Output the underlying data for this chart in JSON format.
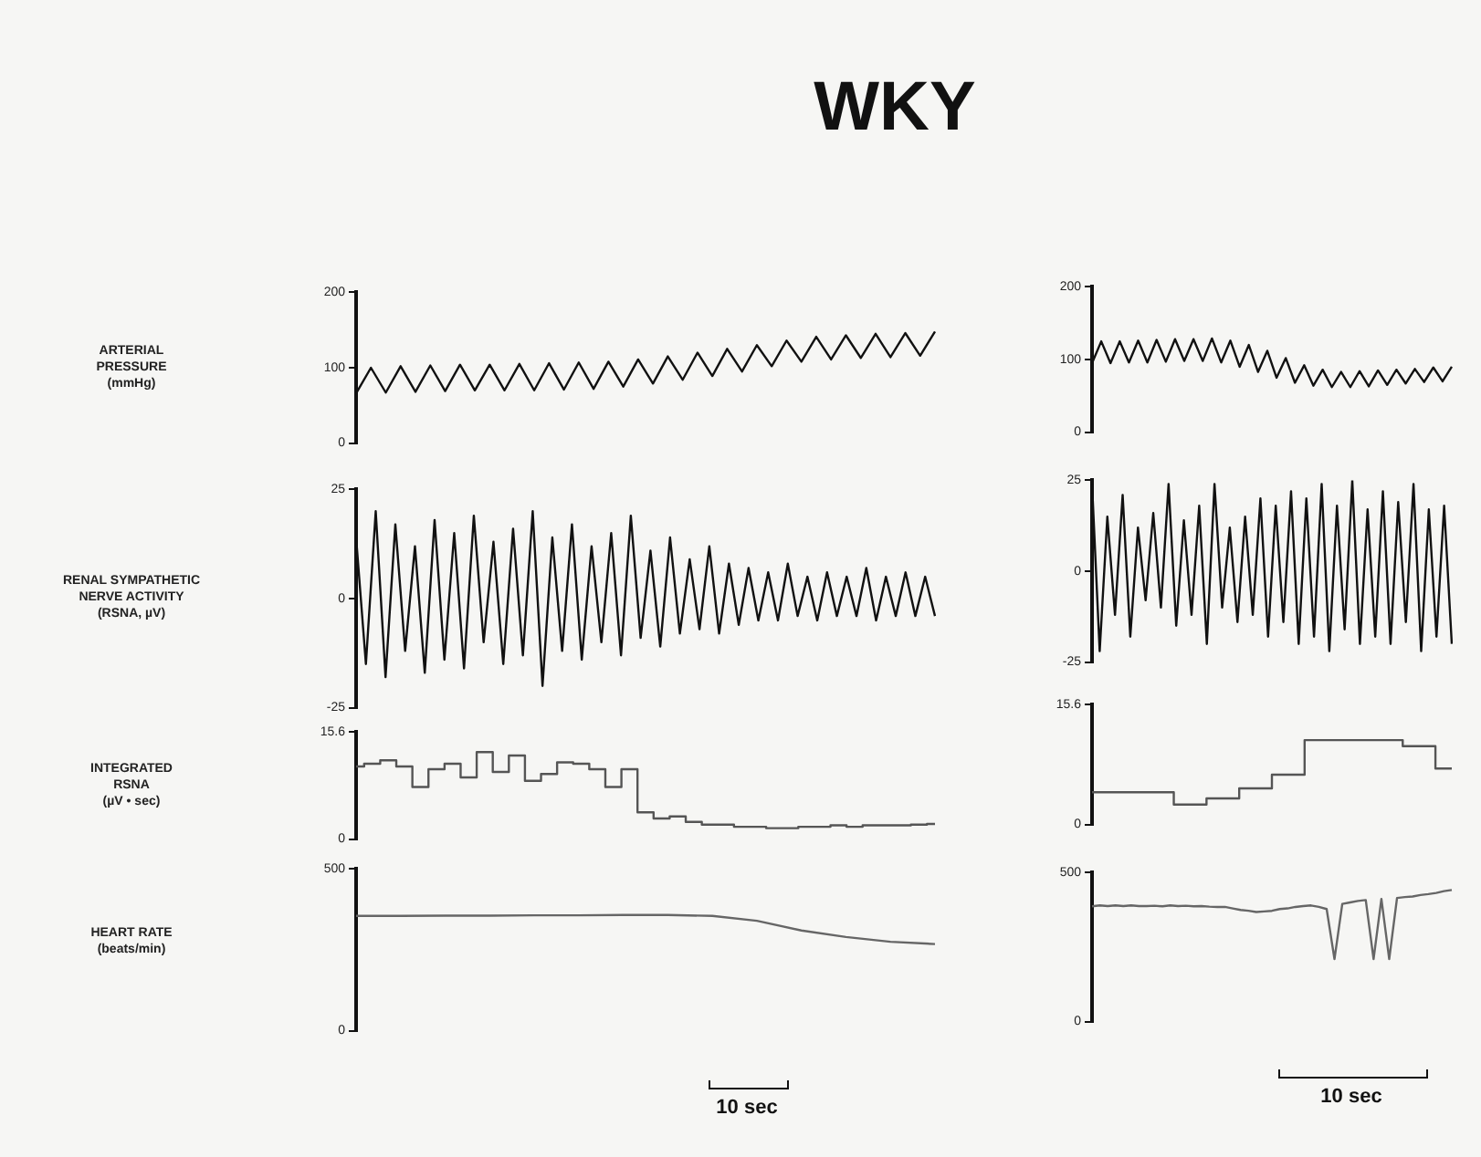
{
  "chart_data": [
    {
      "type": "line",
      "title": "WKY",
      "ylabel": "ARTERIAL\nPRESSURE\n(mmHg)",
      "categories": [
        null,
        null,
        null,
        null,
        null,
        null,
        null,
        null,
        null,
        null,
        null,
        null,
        null,
        null,
        null,
        null,
        null,
        null,
        null,
        null,
        null,
        null,
        null,
        null,
        null,
        null,
        null,
        null,
        null,
        null,
        null,
        null,
        null,
        null,
        null,
        null,
        null,
        null,
        null,
        null
      ],
      "ylim": [
        0,
        200
      ],
      "yticks": [
        0,
        100,
        200
      ],
      "tick_labels": "y",
      "series": [
        {
          "color": "#111111",
          "values": [
            66,
            100,
            67,
            102,
            68,
            103,
            69,
            104,
            70,
            104,
            70,
            105,
            70,
            106,
            71,
            107,
            72,
            108,
            75,
            111,
            79,
            115,
            84,
            120,
            89,
            125,
            95,
            130,
            102,
            136,
            108,
            141,
            111,
            143,
            113,
            145,
            114,
            146,
            116,
            148
          ]
        }
      ]
    },
    {
      "type": "line",
      "categories": [
        null,
        null,
        null,
        null,
        null,
        null,
        null,
        null,
        null,
        null,
        null,
        null,
        null,
        null,
        null,
        null,
        null,
        null,
        null,
        null,
        null,
        null,
        null,
        null,
        null,
        null,
        null,
        null,
        null,
        null,
        null,
        null,
        null,
        null,
        null,
        null,
        null,
        null,
        null,
        null
      ],
      "ylim": [
        0,
        200
      ],
      "yticks": [
        0,
        100,
        200
      ],
      "tick_labels": "y",
      "series": [
        {
          "color": "#111111",
          "values": [
            95,
            125,
            95,
            125,
            96,
            126,
            96,
            127,
            97,
            128,
            98,
            128,
            98,
            129,
            96,
            126,
            90,
            120,
            83,
            112,
            75,
            102,
            68,
            92,
            64,
            86,
            62,
            83,
            62,
            84,
            63,
            85,
            65,
            86,
            67,
            87,
            69,
            89,
            70,
            90
          ]
        }
      ]
    },
    {
      "type": "line",
      "ylabel": "RENAL SYMPATHETIC\nNERVE ACTIVITY\n(RSNA, µV)",
      "categories": [
        null,
        null,
        null,
        null,
        null,
        null,
        null,
        null,
        null,
        null,
        null,
        null,
        null,
        null,
        null,
        null,
        null,
        null,
        null,
        null,
        null,
        null,
        null,
        null,
        null,
        null,
        null,
        null,
        null,
        null,
        null,
        null,
        null,
        null,
        null,
        null,
        null,
        null,
        null,
        null,
        null,
        null,
        null,
        null,
        null,
        null,
        null,
        null,
        null,
        null,
        null,
        null,
        null,
        null,
        null,
        null,
        null,
        null,
        null,
        null
      ],
      "ylim": [
        -25,
        25
      ],
      "yticks": [
        -25,
        0,
        25
      ],
      "tick_labels": "y",
      "series": [
        {
          "color": "#111111",
          "values": [
            14,
            -15,
            20,
            -18,
            17,
            -12,
            12,
            -17,
            18,
            -14,
            15,
            -16,
            19,
            -10,
            13,
            -15,
            16,
            -13,
            20,
            -20,
            14,
            -12,
            17,
            -14,
            12,
            -10,
            15,
            -13,
            19,
            -9,
            11,
            -11,
            14,
            -8,
            9,
            -7,
            12,
            -8,
            8,
            -6,
            7,
            -5,
            6,
            -5,
            8,
            -4,
            5,
            -5,
            6,
            -4,
            5,
            -4,
            7,
            -5,
            5,
            -4,
            6,
            -4,
            5,
            -4
          ]
        }
      ]
    },
    {
      "type": "line",
      "categories": [
        null,
        null,
        null,
        null,
        null,
        null,
        null,
        null,
        null,
        null,
        null,
        null,
        null,
        null,
        null,
        null,
        null,
        null,
        null,
        null,
        null,
        null,
        null,
        null,
        null,
        null,
        null,
        null,
        null,
        null,
        null,
        null,
        null,
        null,
        null,
        null,
        null,
        null,
        null,
        null,
        null,
        null,
        null,
        null,
        null,
        null,
        null,
        null
      ],
      "ylim": [
        -25,
        25
      ],
      "yticks": [
        -25,
        0,
        25
      ],
      "tick_labels": "y",
      "series": [
        {
          "color": "#111111",
          "values": [
            24,
            -22,
            15,
            -12,
            21,
            -18,
            12,
            -8,
            16,
            -10,
            24,
            -15,
            14,
            -12,
            18,
            -20,
            24,
            -10,
            12,
            -14,
            15,
            -12,
            20,
            -18,
            18,
            -14,
            22,
            -20,
            20,
            -18,
            24,
            -22,
            18,
            -16,
            25,
            -20,
            17,
            -18,
            22,
            -20,
            19,
            -14,
            24,
            -22,
            17,
            -18,
            18,
            -20
          ]
        }
      ]
    },
    {
      "type": "step",
      "ylabel": "INTEGRATED\nRSNA\n(µV • sec)",
      "categories": [
        null,
        null,
        null,
        null,
        null,
        null,
        null,
        null,
        null,
        null,
        null,
        null,
        null,
        null,
        null,
        null,
        null,
        null,
        null,
        null,
        null,
        null,
        null,
        null,
        null,
        null,
        null,
        null,
        null,
        null,
        null,
        null,
        null,
        null,
        null,
        null,
        null
      ],
      "ylim": [
        0,
        15.6
      ],
      "yticks": [
        0,
        15.6
      ],
      "tick_labels": "y",
      "series": [
        {
          "color": "#555555",
          "values": [
            10.6,
            11,
            11.5,
            10.6,
            7.6,
            10.2,
            11,
            9,
            12.7,
            9.8,
            12.2,
            8.5,
            9.5,
            11.2,
            11,
            10.2,
            7.6,
            10.2,
            3.9,
            3,
            3.3,
            2.5,
            2.1,
            2.1,
            1.8,
            1.8,
            1.6,
            1.6,
            1.8,
            1.8,
            2,
            1.8,
            2,
            2,
            2,
            2.1,
            2.2
          ]
        }
      ]
    },
    {
      "type": "step",
      "categories": [
        null,
        null,
        null,
        null,
        null,
        null,
        null,
        null,
        null,
        null,
        null,
        null
      ],
      "ylim": [
        0,
        15.6
      ],
      "yticks": [
        0,
        15.6
      ],
      "tick_labels": "y",
      "series": [
        {
          "color": "#555555",
          "values": [
            4.2,
            4.2,
            4.2,
            2.6,
            3.4,
            4.7,
            6.5,
            11,
            11,
            11,
            10.2,
            7.3
          ]
        }
      ]
    },
    {
      "type": "line",
      "ylabel": "HEART RATE\n(beats/min)",
      "categories": [
        null,
        null,
        null,
        null,
        null,
        null,
        null,
        null,
        null,
        null,
        null,
        null,
        null,
        null
      ],
      "ylim": [
        0,
        500
      ],
      "yticks": [
        0,
        500
      ],
      "tick_labels": "y",
      "annotations": [
        "10 sec"
      ],
      "series": [
        {
          "color": "#666666",
          "values": [
            355,
            355,
            356,
            356,
            357,
            357,
            358,
            358,
            355,
            340,
            310,
            290,
            275,
            268
          ]
        }
      ]
    },
    {
      "type": "line",
      "categories": [
        null,
        null,
        null,
        null,
        null,
        null,
        null,
        null,
        null,
        null,
        null,
        null,
        null,
        null,
        null,
        null,
        null,
        null,
        null,
        null,
        null,
        null,
        null,
        null,
        null,
        null,
        null,
        null,
        null,
        null,
        null,
        null,
        null,
        null,
        null,
        null,
        null,
        null,
        null,
        null,
        null,
        null,
        null,
        null,
        null,
        null,
        null
      ],
      "ylim": [
        0,
        500
      ],
      "yticks": [
        0,
        500
      ],
      "tick_labels": "y",
      "annotations": [
        "10 sec"
      ],
      "series": [
        {
          "color": "#666666",
          "values": [
            387,
            390,
            388,
            390,
            388,
            390,
            388,
            388,
            389,
            387,
            390,
            388,
            389,
            387,
            388,
            386,
            385,
            385,
            380,
            375,
            372,
            368,
            370,
            372,
            378,
            380,
            385,
            388,
            390,
            385,
            378,
            210,
            395,
            400,
            405,
            408,
            210,
            412,
            210,
            415,
            418,
            420,
            425,
            428,
            432,
            438,
            442
          ]
        }
      ]
    }
  ]
}
